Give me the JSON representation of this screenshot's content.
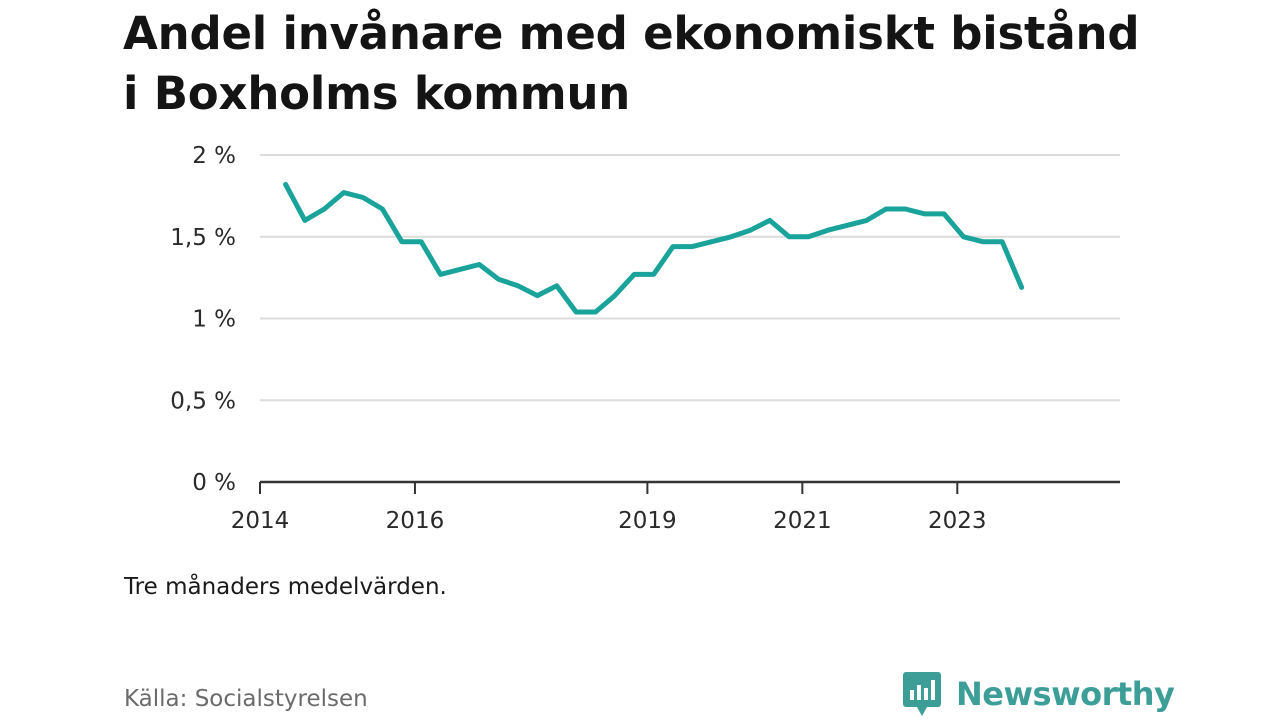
{
  "header": {
    "title": "Andel invånare med ekonomiskt bistånd i Boxholms kommun"
  },
  "footer": {
    "note": "Tre månaders medelvärden.",
    "source": "Källa: Socialstyrelsen",
    "brand": "Newsworthy"
  },
  "colors": {
    "line": "#1aa39a",
    "grid": "#dcdcdc",
    "axis": "#333333",
    "brand": "#3d9e98"
  },
  "icons": {
    "brand_logo": "newsworthy-logo-icon"
  },
  "chart_data": {
    "type": "line",
    "title": "Andel invånare med ekonomiskt bistånd i Boxholms kommun",
    "xlabel": "",
    "ylabel": "",
    "grid": true,
    "ylim": [
      0,
      2
    ],
    "y_ticks": [
      {
        "value": 0,
        "label": "0 %"
      },
      {
        "value": 0.5,
        "label": "0,5 %"
      },
      {
        "value": 1,
        "label": "1 %"
      },
      {
        "value": 1.5,
        "label": "1,5 %"
      },
      {
        "value": 2,
        "label": "2 %"
      }
    ],
    "xlim": [
      2014.0,
      2025.1
    ],
    "x_ticks": [
      {
        "value": 2014,
        "label": "2014"
      },
      {
        "value": 2016,
        "label": "2016"
      },
      {
        "value": 2019,
        "label": "2019"
      },
      {
        "value": 2021,
        "label": "2021"
      },
      {
        "value": 2023,
        "label": "2023"
      }
    ],
    "series": [
      {
        "x": [
          2014.33,
          2014.58,
          2014.83,
          2015.08,
          2015.33,
          2015.58,
          2015.83,
          2016.08,
          2016.33,
          2016.58,
          2016.83,
          2017.08,
          2017.33,
          2017.58,
          2017.83,
          2018.08,
          2018.33,
          2018.58,
          2018.83,
          2019.08,
          2019.33,
          2019.58,
          2019.83,
          2020.08,
          2020.33,
          2020.58,
          2020.83,
          2021.08,
          2021.33,
          2021.58,
          2021.83,
          2022.08,
          2022.33,
          2022.58,
          2022.83,
          2023.08,
          2023.33,
          2023.58,
          2023.83
        ],
        "values": [
          1.82,
          1.6,
          1.67,
          1.77,
          1.74,
          1.67,
          1.47,
          1.47,
          1.27,
          1.3,
          1.33,
          1.24,
          1.2,
          1.14,
          1.2,
          1.04,
          1.04,
          1.14,
          1.27,
          1.27,
          1.44,
          1.44,
          1.47,
          1.5,
          1.54,
          1.6,
          1.5,
          1.5,
          1.54,
          1.57,
          1.6,
          1.67,
          1.67,
          1.64,
          1.64,
          1.5,
          1.47,
          1.47,
          1.19
        ]
      }
    ]
  }
}
